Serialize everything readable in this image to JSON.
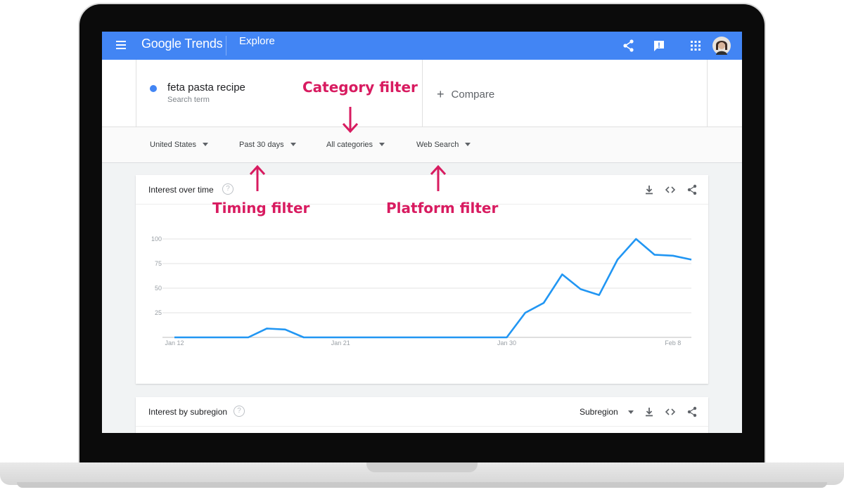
{
  "header": {
    "logo": "Google Trends",
    "section": "Explore"
  },
  "search": {
    "term": "feta pasta recipe",
    "term_type": "Search term",
    "term_color": "#4285f4",
    "compare_label": "Compare"
  },
  "filters": {
    "region": "United States",
    "time": "Past 30 days",
    "category": "All categories",
    "platform": "Web Search"
  },
  "interest_over_time": {
    "title": "Interest over time"
  },
  "interest_by_subregion": {
    "title": "Interest by subregion",
    "dropdown": "Subregion"
  },
  "annotations": {
    "category": "Category filter",
    "timing": "Timing filter",
    "platform": "Platform filter",
    "color": "#d81b60"
  },
  "icons": {
    "topbar": [
      "menu-icon",
      "share-icon",
      "feedback-icon",
      "apps-icon",
      "avatar"
    ],
    "card_actions": [
      "download-icon",
      "embed-icon",
      "share-icon"
    ]
  },
  "chart_data": {
    "type": "line",
    "series": [
      {
        "values": [
          0,
          0,
          0,
          0,
          0,
          9,
          8,
          0,
          0,
          0,
          0,
          0,
          0,
          0,
          0,
          0,
          0,
          0,
          0,
          25,
          35,
          64,
          49,
          43,
          79,
          100,
          84,
          83,
          79
        ],
        "color": "#2196f3"
      }
    ],
    "x_ticks": [
      "Jan 12",
      "Jan 21",
      "Jan 30",
      "Feb 8"
    ],
    "x_tick_index": [
      0,
      9,
      18,
      27
    ],
    "y_ticks": [
      25,
      50,
      75,
      100
    ],
    "ylim": [
      0,
      100
    ],
    "grid": true
  }
}
